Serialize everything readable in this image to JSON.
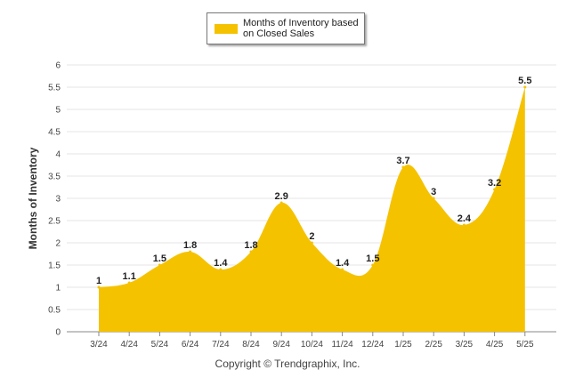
{
  "legend": {
    "label": "Months of Inventory based on Closed Sales"
  },
  "footer": {
    "copyright": "Copyright © Trendgraphix, Inc."
  },
  "colors": {
    "area": "#f5c200",
    "grid": "#e6e6e6",
    "axis": "#888888",
    "text": "#222222"
  },
  "chart_data": {
    "type": "area",
    "ylabel": "Months of Inventory",
    "xlabel": "",
    "ylim": [
      0,
      6
    ],
    "yticks": [
      "0",
      "0.5",
      "1",
      "1.5",
      "2",
      "2.5",
      "3",
      "3.5",
      "4",
      "4.5",
      "5",
      "5.5",
      "6"
    ],
    "grid": true,
    "legend_position": "top-center",
    "categories": [
      "3/24",
      "4/24",
      "5/24",
      "6/24",
      "7/24",
      "8/24",
      "9/24",
      "10/24",
      "11/24",
      "12/24",
      "1/25",
      "2/25",
      "3/25",
      "4/25",
      "5/25"
    ],
    "series": [
      {
        "name": "Months of Inventory based on Closed Sales",
        "values": [
          1,
          1.1,
          1.5,
          1.8,
          1.4,
          1.8,
          2.9,
          2,
          1.4,
          1.5,
          3.7,
          3,
          2.4,
          3.2,
          5.5
        ],
        "labels": [
          "1",
          "1.1",
          "1.5",
          "1.8",
          "1.4",
          "1.8",
          "2.9",
          "2",
          "1.4",
          "1.5",
          "3.7",
          "3",
          "2.4",
          "3.2",
          "5.5"
        ]
      }
    ]
  }
}
